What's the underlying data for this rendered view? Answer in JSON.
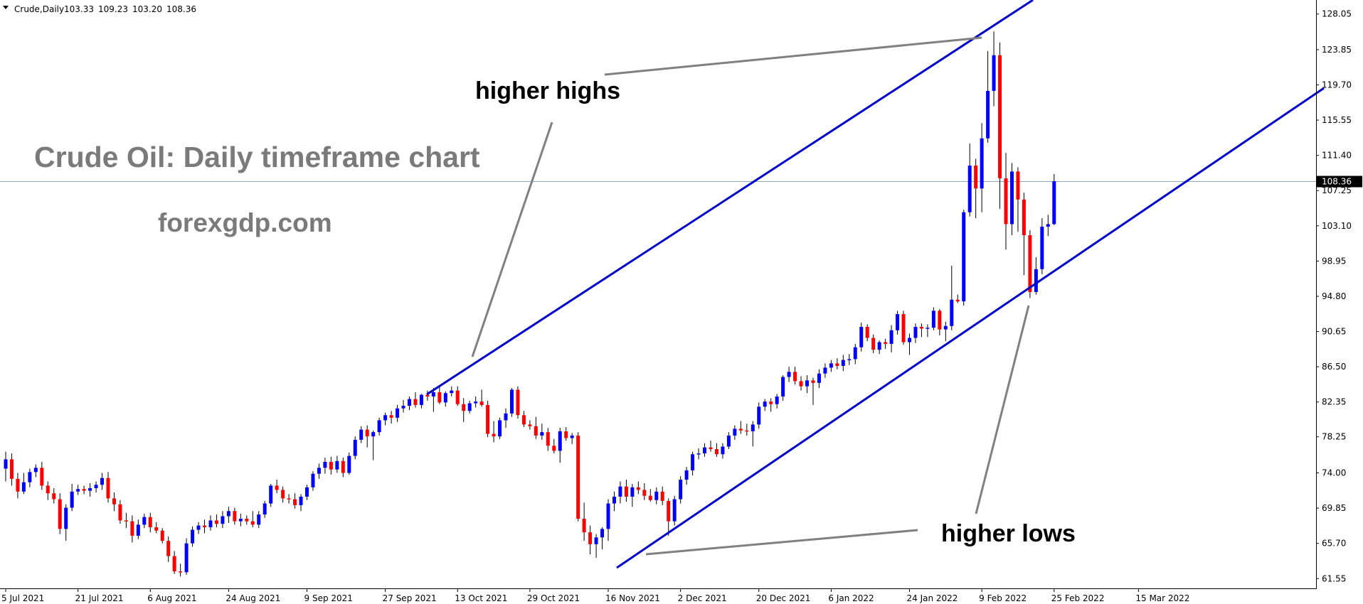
{
  "header": {
    "symbol_label": "Crude,Daily",
    "ohlc": [
      "103.33",
      "109.23",
      "103.20",
      "108.36"
    ]
  },
  "watermark": {
    "title": "Crude Oil: Daily timeframe chart",
    "site": "forexgdp.com"
  },
  "annotations": {
    "upper": "higher highs",
    "lower": "higher lows"
  },
  "colors": {
    "bull": "#0000ff",
    "bear": "#ff0000",
    "wick": "#000000",
    "trendline": "#0000cc",
    "pointer": "#808080",
    "current_price_line": "#8fa6b8",
    "price_tag_bg": "#000000"
  },
  "chart_data": {
    "type": "candlestick",
    "title": "Crude,Daily",
    "current_price": 108.36,
    "current_price_label": "108.36",
    "ylim": [
      60.4,
      129.7
    ],
    "yticks": [
      128.05,
      123.85,
      119.7,
      115.55,
      111.4,
      107.25,
      103.1,
      98.95,
      94.8,
      90.65,
      86.5,
      82.35,
      78.25,
      74.0,
      69.85,
      65.7,
      61.55
    ],
    "ytick_labels": [
      "128.05",
      "123.85",
      "119.70",
      "115.55",
      "111.40",
      "107.25",
      "103.10",
      "98.95",
      "94.80",
      "90.65",
      "86.50",
      "82.35",
      "78.25",
      "74.00",
      "69.85",
      "65.70",
      "61.55"
    ],
    "x_labels": [
      "5 Jul 2021",
      "21 Jul 2021",
      "6 Aug 2021",
      "24 Aug 2021",
      "9 Sep 2021",
      "27 Sep 2021",
      "13 Oct 2021",
      "29 Oct 2021",
      "16 Nov 2021",
      "2 Dec 2021",
      "20 Dec 2021",
      "6 Jan 2022",
      "24 Jan 2022",
      "9 Feb 2022",
      "25 Feb 2022",
      "15 Mar 2022"
    ],
    "x_label_bars": [
      0,
      12,
      24,
      37,
      50,
      63,
      75,
      87,
      100,
      112,
      125,
      137,
      150,
      162,
      174,
      188
    ],
    "bars": [
      {
        "o": 74.5,
        "h": 76.5,
        "l": 73.0,
        "c": 75.6
      },
      {
        "o": 75.6,
        "h": 76.3,
        "l": 72.5,
        "c": 73.3
      },
      {
        "o": 73.3,
        "h": 74.0,
        "l": 71.0,
        "c": 71.8
      },
      {
        "o": 71.8,
        "h": 74.0,
        "l": 71.5,
        "c": 72.9
      },
      {
        "o": 72.9,
        "h": 74.5,
        "l": 72.3,
        "c": 74.1
      },
      {
        "o": 74.1,
        "h": 75.0,
        "l": 73.5,
        "c": 74.6
      },
      {
        "o": 74.6,
        "h": 75.3,
        "l": 72.0,
        "c": 72.5
      },
      {
        "o": 72.5,
        "h": 73.0,
        "l": 70.8,
        "c": 71.6
      },
      {
        "o": 71.6,
        "h": 72.2,
        "l": 70.4,
        "c": 70.9
      },
      {
        "o": 70.9,
        "h": 71.6,
        "l": 66.8,
        "c": 67.4
      },
      {
        "o": 67.4,
        "h": 70.3,
        "l": 66.0,
        "c": 69.9
      },
      {
        "o": 69.9,
        "h": 72.7,
        "l": 69.5,
        "c": 71.8
      },
      {
        "o": 71.8,
        "h": 72.6,
        "l": 71.4,
        "c": 72.1
      },
      {
        "o": 72.1,
        "h": 72.5,
        "l": 71.5,
        "c": 71.9
      },
      {
        "o": 71.9,
        "h": 72.8,
        "l": 71.2,
        "c": 72.2
      },
      {
        "o": 72.2,
        "h": 73.0,
        "l": 71.7,
        "c": 72.6
      },
      {
        "o": 72.6,
        "h": 74.0,
        "l": 72.0,
        "c": 73.4
      },
      {
        "o": 73.4,
        "h": 74.1,
        "l": 70.5,
        "c": 71.0
      },
      {
        "o": 71.0,
        "h": 71.7,
        "l": 69.5,
        "c": 70.3
      },
      {
        "o": 70.3,
        "h": 70.8,
        "l": 68.0,
        "c": 68.4
      },
      {
        "o": 68.4,
        "h": 69.3,
        "l": 67.5,
        "c": 68.3
      },
      {
        "o": 68.3,
        "h": 69.0,
        "l": 65.8,
        "c": 66.6
      },
      {
        "o": 66.6,
        "h": 68.5,
        "l": 66.2,
        "c": 67.9
      },
      {
        "o": 67.9,
        "h": 69.2,
        "l": 67.5,
        "c": 68.8
      },
      {
        "o": 68.8,
        "h": 69.3,
        "l": 67.0,
        "c": 67.6
      },
      {
        "o": 67.6,
        "h": 68.2,
        "l": 66.9,
        "c": 67.2
      },
      {
        "o": 67.2,
        "h": 67.5,
        "l": 65.7,
        "c": 66.0
      },
      {
        "o": 66.0,
        "h": 66.5,
        "l": 63.5,
        "c": 64.2
      },
      {
        "o": 64.2,
        "h": 64.8,
        "l": 62.1,
        "c": 62.4
      },
      {
        "o": 62.4,
        "h": 63.3,
        "l": 61.8,
        "c": 62.3
      },
      {
        "o": 62.3,
        "h": 66.3,
        "l": 62.0,
        "c": 65.7
      },
      {
        "o": 65.7,
        "h": 67.7,
        "l": 65.3,
        "c": 67.3
      },
      {
        "o": 67.3,
        "h": 68.2,
        "l": 66.8,
        "c": 67.8
      },
      {
        "o": 67.8,
        "h": 68.5,
        "l": 66.9,
        "c": 67.6
      },
      {
        "o": 67.6,
        "h": 69.0,
        "l": 67.2,
        "c": 68.4
      },
      {
        "o": 68.4,
        "h": 69.1,
        "l": 67.6,
        "c": 68.0
      },
      {
        "o": 68.0,
        "h": 69.5,
        "l": 67.5,
        "c": 68.9
      },
      {
        "o": 68.9,
        "h": 70.0,
        "l": 68.1,
        "c": 69.5
      },
      {
        "o": 69.5,
        "h": 69.9,
        "l": 67.9,
        "c": 68.3
      },
      {
        "o": 68.3,
        "h": 69.2,
        "l": 67.7,
        "c": 68.6
      },
      {
        "o": 68.6,
        "h": 69.0,
        "l": 67.9,
        "c": 68.3
      },
      {
        "o": 68.3,
        "h": 69.5,
        "l": 67.6,
        "c": 67.9
      },
      {
        "o": 67.9,
        "h": 69.5,
        "l": 67.5,
        "c": 69.1
      },
      {
        "o": 69.1,
        "h": 70.7,
        "l": 68.7,
        "c": 70.4
      },
      {
        "o": 70.4,
        "h": 72.7,
        "l": 70.0,
        "c": 72.5
      },
      {
        "o": 72.5,
        "h": 73.2,
        "l": 71.6,
        "c": 72.0
      },
      {
        "o": 72.0,
        "h": 72.4,
        "l": 70.5,
        "c": 71.0
      },
      {
        "o": 71.0,
        "h": 71.5,
        "l": 70.4,
        "c": 70.9
      },
      {
        "o": 70.9,
        "h": 71.6,
        "l": 69.8,
        "c": 70.2
      },
      {
        "o": 70.2,
        "h": 71.5,
        "l": 69.5,
        "c": 71.2
      },
      {
        "o": 71.2,
        "h": 72.6,
        "l": 70.8,
        "c": 72.3
      },
      {
        "o": 72.3,
        "h": 74.2,
        "l": 71.9,
        "c": 73.9
      },
      {
        "o": 73.9,
        "h": 75.1,
        "l": 73.3,
        "c": 74.6
      },
      {
        "o": 74.6,
        "h": 75.8,
        "l": 73.9,
        "c": 75.3
      },
      {
        "o": 75.3,
        "h": 75.9,
        "l": 73.8,
        "c": 74.4
      },
      {
        "o": 74.4,
        "h": 76.0,
        "l": 74.0,
        "c": 75.4
      },
      {
        "o": 75.4,
        "h": 75.8,
        "l": 73.5,
        "c": 74.0
      },
      {
        "o": 74.0,
        "h": 76.4,
        "l": 73.8,
        "c": 76.0
      },
      {
        "o": 76.0,
        "h": 78.3,
        "l": 75.6,
        "c": 77.9
      },
      {
        "o": 77.9,
        "h": 79.5,
        "l": 77.5,
        "c": 79.1
      },
      {
        "o": 79.1,
        "h": 79.6,
        "l": 77.0,
        "c": 78.3
      },
      {
        "o": 78.3,
        "h": 79.0,
        "l": 75.5,
        "c": 78.8
      },
      {
        "o": 78.8,
        "h": 80.5,
        "l": 78.4,
        "c": 80.2
      },
      {
        "o": 80.2,
        "h": 81.1,
        "l": 79.6,
        "c": 80.8
      },
      {
        "o": 80.8,
        "h": 81.3,
        "l": 79.8,
        "c": 80.5
      },
      {
        "o": 80.5,
        "h": 82.0,
        "l": 80.0,
        "c": 81.6
      },
      {
        "o": 81.6,
        "h": 82.6,
        "l": 81.1,
        "c": 81.9
      },
      {
        "o": 81.9,
        "h": 83.0,
        "l": 81.4,
        "c": 82.7
      },
      {
        "o": 82.7,
        "h": 83.5,
        "l": 81.7,
        "c": 82.0
      },
      {
        "o": 82.0,
        "h": 83.3,
        "l": 81.6,
        "c": 83.2
      },
      {
        "o": 83.2,
        "h": 83.7,
        "l": 82.5,
        "c": 83.0
      },
      {
        "o": 83.0,
        "h": 84.0,
        "l": 81.2,
        "c": 83.5
      },
      {
        "o": 83.5,
        "h": 84.1,
        "l": 82.1,
        "c": 82.3
      },
      {
        "o": 82.3,
        "h": 83.6,
        "l": 81.8,
        "c": 83.4
      },
      {
        "o": 83.4,
        "h": 84.2,
        "l": 83.0,
        "c": 83.7
      },
      {
        "o": 83.7,
        "h": 84.2,
        "l": 81.9,
        "c": 82.1
      },
      {
        "o": 82.1,
        "h": 82.8,
        "l": 80.0,
        "c": 81.3
      },
      {
        "o": 81.3,
        "h": 82.5,
        "l": 81.0,
        "c": 82.2
      },
      {
        "o": 82.2,
        "h": 83.0,
        "l": 81.7,
        "c": 82.4
      },
      {
        "o": 82.4,
        "h": 83.8,
        "l": 81.8,
        "c": 82.0
      },
      {
        "o": 82.0,
        "h": 82.5,
        "l": 78.2,
        "c": 78.6
      },
      {
        "o": 78.6,
        "h": 80.1,
        "l": 77.6,
        "c": 78.3
      },
      {
        "o": 78.3,
        "h": 80.5,
        "l": 78.0,
        "c": 80.2
      },
      {
        "o": 80.2,
        "h": 81.6,
        "l": 79.3,
        "c": 81.0
      },
      {
        "o": 81.0,
        "h": 84.0,
        "l": 80.6,
        "c": 83.8
      },
      {
        "o": 83.8,
        "h": 84.2,
        "l": 80.4,
        "c": 80.8
      },
      {
        "o": 80.8,
        "h": 81.3,
        "l": 79.4,
        "c": 79.7
      },
      {
        "o": 79.7,
        "h": 80.2,
        "l": 79.1,
        "c": 79.5
      },
      {
        "o": 79.5,
        "h": 80.6,
        "l": 78.0,
        "c": 78.4
      },
      {
        "o": 78.4,
        "h": 79.8,
        "l": 77.9,
        "c": 78.8
      },
      {
        "o": 78.8,
        "h": 79.3,
        "l": 76.6,
        "c": 77.2
      },
      {
        "o": 77.2,
        "h": 78.0,
        "l": 76.3,
        "c": 76.6
      },
      {
        "o": 76.6,
        "h": 79.3,
        "l": 75.2,
        "c": 78.9
      },
      {
        "o": 78.9,
        "h": 79.4,
        "l": 77.8,
        "c": 78.1
      },
      {
        "o": 78.1,
        "h": 78.7,
        "l": 77.4,
        "c": 78.4
      },
      {
        "o": 78.4,
        "h": 78.8,
        "l": 68.3,
        "c": 68.6
      },
      {
        "o": 68.6,
        "h": 70.5,
        "l": 66.0,
        "c": 67.0
      },
      {
        "o": 67.0,
        "h": 67.8,
        "l": 64.4,
        "c": 65.6
      },
      {
        "o": 65.6,
        "h": 66.8,
        "l": 64.0,
        "c": 66.4
      },
      {
        "o": 66.4,
        "h": 67.6,
        "l": 65.0,
        "c": 67.4
      },
      {
        "o": 67.4,
        "h": 70.9,
        "l": 66.0,
        "c": 70.4
      },
      {
        "o": 70.4,
        "h": 71.8,
        "l": 69.5,
        "c": 71.2
      },
      {
        "o": 71.2,
        "h": 73.0,
        "l": 70.4,
        "c": 72.4
      },
      {
        "o": 72.4,
        "h": 73.2,
        "l": 70.6,
        "c": 71.2
      },
      {
        "o": 71.2,
        "h": 72.7,
        "l": 70.0,
        "c": 72.3
      },
      {
        "o": 72.3,
        "h": 73.0,
        "l": 71.5,
        "c": 72.0
      },
      {
        "o": 72.0,
        "h": 72.8,
        "l": 70.8,
        "c": 71.3
      },
      {
        "o": 71.3,
        "h": 72.1,
        "l": 70.6,
        "c": 70.8
      },
      {
        "o": 70.8,
        "h": 72.3,
        "l": 70.3,
        "c": 71.8
      },
      {
        "o": 71.8,
        "h": 72.4,
        "l": 70.2,
        "c": 70.7
      },
      {
        "o": 70.7,
        "h": 71.0,
        "l": 66.6,
        "c": 68.3
      },
      {
        "o": 68.3,
        "h": 71.3,
        "l": 67.8,
        "c": 70.9
      },
      {
        "o": 70.9,
        "h": 73.6,
        "l": 70.4,
        "c": 73.2
      },
      {
        "o": 73.2,
        "h": 74.7,
        "l": 72.6,
        "c": 74.3
      },
      {
        "o": 74.3,
        "h": 76.5,
        "l": 73.7,
        "c": 76.2
      },
      {
        "o": 76.2,
        "h": 76.9,
        "l": 75.6,
        "c": 76.3
      },
      {
        "o": 76.3,
        "h": 77.5,
        "l": 75.9,
        "c": 77.0
      },
      {
        "o": 77.0,
        "h": 77.8,
        "l": 76.5,
        "c": 76.8
      },
      {
        "o": 76.8,
        "h": 77.5,
        "l": 75.9,
        "c": 76.2
      },
      {
        "o": 76.2,
        "h": 77.5,
        "l": 75.7,
        "c": 77.1
      },
      {
        "o": 77.1,
        "h": 78.8,
        "l": 76.8,
        "c": 78.4
      },
      {
        "o": 78.4,
        "h": 79.6,
        "l": 77.9,
        "c": 79.2
      },
      {
        "o": 79.2,
        "h": 80.1,
        "l": 78.6,
        "c": 79.0
      },
      {
        "o": 79.0,
        "h": 79.8,
        "l": 78.4,
        "c": 78.9
      },
      {
        "o": 78.9,
        "h": 80.1,
        "l": 77.1,
        "c": 79.7
      },
      {
        "o": 79.7,
        "h": 82.3,
        "l": 79.2,
        "c": 81.8
      },
      {
        "o": 81.8,
        "h": 82.7,
        "l": 81.3,
        "c": 82.4
      },
      {
        "o": 82.4,
        "h": 82.8,
        "l": 81.2,
        "c": 82.1
      },
      {
        "o": 82.1,
        "h": 83.3,
        "l": 81.6,
        "c": 83.0
      },
      {
        "o": 83.0,
        "h": 85.5,
        "l": 82.5,
        "c": 85.3
      },
      {
        "o": 85.3,
        "h": 86.5,
        "l": 84.7,
        "c": 85.9
      },
      {
        "o": 85.9,
        "h": 86.5,
        "l": 84.4,
        "c": 84.8
      },
      {
        "o": 84.8,
        "h": 85.4,
        "l": 83.7,
        "c": 84.2
      },
      {
        "o": 84.2,
        "h": 85.5,
        "l": 83.4,
        "c": 84.9
      },
      {
        "o": 84.9,
        "h": 85.2,
        "l": 82.0,
        "c": 84.6
      },
      {
        "o": 84.6,
        "h": 86.2,
        "l": 84.0,
        "c": 85.7
      },
      {
        "o": 85.7,
        "h": 86.9,
        "l": 85.2,
        "c": 86.4
      },
      {
        "o": 86.4,
        "h": 87.3,
        "l": 85.9,
        "c": 86.9
      },
      {
        "o": 86.9,
        "h": 87.5,
        "l": 86.2,
        "c": 86.6
      },
      {
        "o": 86.6,
        "h": 87.9,
        "l": 86.0,
        "c": 87.3
      },
      {
        "o": 87.3,
        "h": 88.0,
        "l": 86.7,
        "c": 87.4
      },
      {
        "o": 87.4,
        "h": 89.2,
        "l": 86.8,
        "c": 88.8
      },
      {
        "o": 88.8,
        "h": 91.7,
        "l": 88.3,
        "c": 91.2
      },
      {
        "o": 91.2,
        "h": 91.5,
        "l": 89.5,
        "c": 89.9
      },
      {
        "o": 89.9,
        "h": 90.3,
        "l": 88.1,
        "c": 88.5
      },
      {
        "o": 88.5,
        "h": 89.6,
        "l": 88.0,
        "c": 89.4
      },
      {
        "o": 89.4,
        "h": 89.8,
        "l": 88.6,
        "c": 89.2
      },
      {
        "o": 89.2,
        "h": 91.4,
        "l": 88.2,
        "c": 90.8
      },
      {
        "o": 90.8,
        "h": 93.1,
        "l": 90.3,
        "c": 92.7
      },
      {
        "o": 92.7,
        "h": 93.1,
        "l": 89.1,
        "c": 89.4
      },
      {
        "o": 89.4,
        "h": 90.4,
        "l": 87.9,
        "c": 89.9
      },
      {
        "o": 89.9,
        "h": 91.6,
        "l": 89.3,
        "c": 91.2
      },
      {
        "o": 91.2,
        "h": 91.6,
        "l": 90.0,
        "c": 91.0
      },
      {
        "o": 91.0,
        "h": 91.5,
        "l": 90.0,
        "c": 91.1
      },
      {
        "o": 91.1,
        "h": 93.5,
        "l": 90.8,
        "c": 93.1
      },
      {
        "o": 93.1,
        "h": 93.3,
        "l": 90.2,
        "c": 90.9
      },
      {
        "o": 90.9,
        "h": 91.8,
        "l": 89.5,
        "c": 91.3
      },
      {
        "o": 91.3,
        "h": 98.4,
        "l": 90.8,
        "c": 94.4
      },
      {
        "o": 94.4,
        "h": 95.0,
        "l": 94.0,
        "c": 94.2
      },
      {
        "o": 94.2,
        "h": 105.0,
        "l": 93.7,
        "c": 104.7
      },
      {
        "o": 104.7,
        "h": 112.8,
        "l": 104.2,
        "c": 110.2
      },
      {
        "o": 110.2,
        "h": 111.0,
        "l": 104.0,
        "c": 107.5
      },
      {
        "o": 107.5,
        "h": 115.2,
        "l": 104.7,
        "c": 113.4
      },
      {
        "o": 113.4,
        "h": 123.7,
        "l": 112.9,
        "c": 119.0
      },
      {
        "o": 119.0,
        "h": 126.0,
        "l": 117.2,
        "c": 123.2
      },
      {
        "o": 123.2,
        "h": 124.7,
        "l": 105.1,
        "c": 108.7
      },
      {
        "o": 108.7,
        "h": 111.7,
        "l": 100.3,
        "c": 103.3
      },
      {
        "o": 103.3,
        "h": 110.5,
        "l": 102.0,
        "c": 109.5
      },
      {
        "o": 109.5,
        "h": 110.0,
        "l": 102.4,
        "c": 106.2
      },
      {
        "o": 106.2,
        "h": 107.0,
        "l": 97.3,
        "c": 102.0
      },
      {
        "o": 102.0,
        "h": 102.6,
        "l": 94.6,
        "c": 95.3
      },
      {
        "o": 95.3,
        "h": 99.4,
        "l": 95.0,
        "c": 98.0
      },
      {
        "o": 98.0,
        "h": 104.0,
        "l": 97.4,
        "c": 103.0
      },
      {
        "o": 103.0,
        "h": 104.4,
        "l": 101.9,
        "c": 103.3
      },
      {
        "o": 103.3,
        "h": 109.2,
        "l": 103.2,
        "c": 108.36
      }
    ]
  }
}
